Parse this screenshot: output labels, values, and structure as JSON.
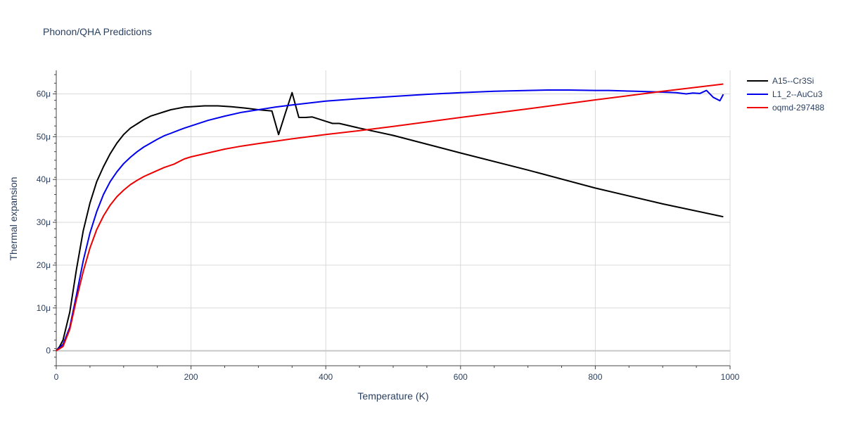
{
  "chart_data": {
    "type": "line",
    "title": "Phonon/QHA Predictions",
    "xlabel": "Temperature (K)",
    "ylabel": "Thermal expansion",
    "xlim": [
      0,
      1000
    ],
    "ylim": [
      -3.5e-06,
      6.55e-05
    ],
    "x_ticks": [
      0,
      200,
      400,
      600,
      800,
      1000
    ],
    "x_tick_labels": [
      "0",
      "200",
      "400",
      "600",
      "800",
      "1000"
    ],
    "y_ticks": [
      0,
      1e-05,
      2e-05,
      3e-05,
      4e-05,
      5e-05,
      6e-05
    ],
    "y_tick_labels": [
      "0",
      "10μ",
      "20μ",
      "30μ",
      "40μ",
      "50μ",
      "60μ"
    ],
    "grid": true,
    "legend_position": "top-right",
    "series": [
      {
        "name": "A15--Cr3Si",
        "color": "#000000",
        "x": [
          0,
          5,
          10,
          20,
          30,
          40,
          50,
          60,
          70,
          80,
          90,
          100,
          110,
          120,
          130,
          140,
          150,
          160,
          170,
          180,
          190,
          200,
          220,
          240,
          260,
          280,
          300,
          320,
          330,
          340,
          350,
          360,
          370,
          380,
          400,
          410,
          420,
          450,
          500,
          600,
          700,
          800,
          900,
          990
        ],
        "y": [
          0,
          1e-06,
          2.5e-06,
          9e-06,
          1.9e-05,
          2.8e-05,
          3.45e-05,
          3.95e-05,
          4.3e-05,
          4.6e-05,
          4.85e-05,
          5.05e-05,
          5.2e-05,
          5.3e-05,
          5.4e-05,
          5.48e-05,
          5.53e-05,
          5.58e-05,
          5.63e-05,
          5.66e-05,
          5.69e-05,
          5.7e-05,
          5.72e-05,
          5.72e-05,
          5.7e-05,
          5.67e-05,
          5.63e-05,
          5.6e-05,
          5.05e-05,
          5.55e-05,
          6.03e-05,
          5.45e-05,
          5.45e-05,
          5.46e-05,
          5.36e-05,
          5.31e-05,
          5.31e-05,
          5.2e-05,
          5.03e-05,
          4.62e-05,
          4.22e-05,
          3.8e-05,
          3.43e-05,
          3.13e-05
        ]
      },
      {
        "name": "L1_2--AuCu3",
        "color": "#0000ee",
        "x": [
          0,
          10,
          20,
          30,
          40,
          50,
          60,
          70,
          80,
          90,
          100,
          110,
          120,
          130,
          140,
          150,
          160,
          170,
          180,
          190,
          200,
          225,
          250,
          275,
          300,
          325,
          350,
          400,
          450,
          500,
          550,
          600,
          650,
          700,
          730,
          760,
          800,
          820,
          860,
          900,
          920,
          935,
          945,
          955,
          965,
          975,
          985,
          990
        ],
        "y": [
          0,
          1.5e-06,
          5.5e-06,
          1.3e-05,
          2.1e-05,
          2.75e-05,
          3.25e-05,
          3.65e-05,
          3.95e-05,
          4.18e-05,
          4.37e-05,
          4.52e-05,
          4.65e-05,
          4.76e-05,
          4.85e-05,
          4.94e-05,
          5.02e-05,
          5.08e-05,
          5.14e-05,
          5.2e-05,
          5.25e-05,
          5.38e-05,
          5.48e-05,
          5.57e-05,
          5.63e-05,
          5.69e-05,
          5.74e-05,
          5.83e-05,
          5.89e-05,
          5.94e-05,
          5.99e-05,
          6.03e-05,
          6.06e-05,
          6.08e-05,
          6.09e-05,
          6.09e-05,
          6.08e-05,
          6.08e-05,
          6.06e-05,
          6.04e-05,
          6.03e-05,
          6e-05,
          6.02e-05,
          6.01e-05,
          6.08e-05,
          5.92e-05,
          5.84e-05,
          5.99e-05
        ]
      },
      {
        "name": "oqmd-297488",
        "color": "#ee0000",
        "x": [
          0,
          10,
          20,
          30,
          40,
          50,
          60,
          70,
          80,
          90,
          100,
          110,
          120,
          130,
          140,
          150,
          160,
          175,
          190,
          200,
          225,
          250,
          275,
          300,
          350,
          400,
          450,
          500,
          600,
          700,
          800,
          900,
          990
        ],
        "y": [
          0,
          1e-06,
          5e-06,
          1.2e-05,
          1.85e-05,
          2.4e-05,
          2.83e-05,
          3.15e-05,
          3.4e-05,
          3.6e-05,
          3.75e-05,
          3.88e-05,
          3.98e-05,
          4.07e-05,
          4.14e-05,
          4.21e-05,
          4.28e-05,
          4.36e-05,
          4.48e-05,
          4.53e-05,
          4.62e-05,
          4.71e-05,
          4.78e-05,
          4.84e-05,
          4.95e-05,
          5.05e-05,
          5.14e-05,
          5.24e-05,
          5.45e-05,
          5.65e-05,
          5.86e-05,
          6.06e-05,
          6.23e-05
        ]
      }
    ]
  }
}
